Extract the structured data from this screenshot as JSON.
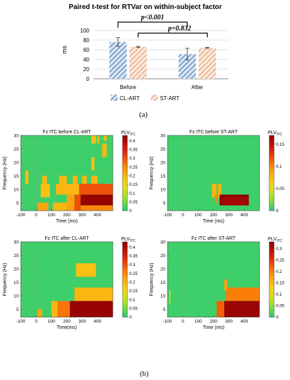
{
  "caption_a": "(a)",
  "caption_b": "(b)",
  "bar_chart": {
    "type": "bar",
    "title": "Paired t-test for RTVar on within-subject factor",
    "ylabel": "ms",
    "ylim": [
      0,
      100
    ],
    "yticks": [
      "0",
      "20",
      "40",
      "60",
      "80",
      "100"
    ],
    "categories": [
      "Before",
      "After"
    ],
    "series": [
      {
        "name": "CL-ART",
        "values": [
          76,
          51
        ],
        "errors": [
          9,
          12
        ],
        "color": "#4f81bd",
        "pattern": "hatch-blue"
      },
      {
        "name": "ST-ART",
        "values": [
          66,
          64
        ],
        "errors": [
          1,
          1
        ],
        "color": "#e6a57a",
        "pattern": "hatch-orange"
      }
    ],
    "annotations": [
      "p<0.001",
      "p=0.832"
    ]
  },
  "chart_data": [
    {
      "type": "heatmap",
      "title": "Fz ITC before CL-ART",
      "xlabel": "Time (ms)",
      "ylabel": "Frequency (Hz)",
      "xticks": [
        "-100",
        "0",
        "100",
        "200",
        "300",
        "400"
      ],
      "yticks": [
        "5",
        "10",
        "15",
        "20",
        "25",
        "30"
      ],
      "xlim": [
        -100,
        500
      ],
      "ylim": [
        2,
        30
      ],
      "colorbar_title": "PLV",
      "colorbar_sub": "ITC",
      "colorbar_ticks": [
        "0",
        "0.05",
        "0.1",
        "0.15",
        "0.2",
        "0.25",
        "0.3",
        "0.35",
        "0.4"
      ],
      "vmax": 0.43,
      "cells": [
        {
          "x0": -100,
          "x1": 10,
          "y0": 2,
          "y1": 30,
          "v": 0
        },
        {
          "x0": 10,
          "x1": 80,
          "y0": 2,
          "y1": 5,
          "v": 0.22
        },
        {
          "x0": 110,
          "x1": 200,
          "y0": 2,
          "y1": 5,
          "v": 0.2
        },
        {
          "x0": 250,
          "x1": 500,
          "y0": 2,
          "y1": 4,
          "v": 0.25
        },
        {
          "x0": 200,
          "x1": 250,
          "y0": 2,
          "y1": 8,
          "v": 0.22
        },
        {
          "x0": 250,
          "x1": 290,
          "y0": 2,
          "y1": 8,
          "v": 0.3
        },
        {
          "x0": 290,
          "x1": 500,
          "y0": 4,
          "y1": 8,
          "v": 0.42
        },
        {
          "x0": 280,
          "x1": 500,
          "y0": 8,
          "y1": 12,
          "v": 0.3
        },
        {
          "x0": 130,
          "x1": 280,
          "y0": 8,
          "y1": 12,
          "v": 0.2
        },
        {
          "x0": 30,
          "x1": 90,
          "y0": 7,
          "y1": 12,
          "v": 0.19
        },
        {
          "x0": 40,
          "x1": 70,
          "y0": 12,
          "y1": 15,
          "v": 0.2
        },
        {
          "x0": 150,
          "x1": 200,
          "y0": 12,
          "y1": 15,
          "v": 0.2
        },
        {
          "x0": 240,
          "x1": 270,
          "y0": 12,
          "y1": 15,
          "v": 0.2
        },
        {
          "x0": 300,
          "x1": 330,
          "y0": 12,
          "y1": 15,
          "v": 0.2
        },
        {
          "x0": 360,
          "x1": 400,
          "y0": 12,
          "y1": 15,
          "v": 0.2
        },
        {
          "x0": -70,
          "x1": -50,
          "y0": 12,
          "y1": 17,
          "v": 0.19
        },
        {
          "x0": 360,
          "x1": 380,
          "y0": 17,
          "y1": 22,
          "v": 0.19
        },
        {
          "x0": 430,
          "x1": 460,
          "y0": 22,
          "y1": 27,
          "v": 0.2
        },
        {
          "x0": 360,
          "x1": 390,
          "y0": 27,
          "y1": 30,
          "v": 0.19
        },
        {
          "x0": 400,
          "x1": 410,
          "y0": 27,
          "y1": 30,
          "v": 0.19
        },
        {
          "x0": 440,
          "x1": 460,
          "y0": 28,
          "y1": 30,
          "v": 0.2
        }
      ]
    },
    {
      "type": "heatmap",
      "title": "Fz ITC before ST-ART",
      "xlabel": "Time (ms)",
      "ylabel": "Frequency (Hz)",
      "xticks": [
        "-100",
        "0",
        "100",
        "200",
        "300",
        "400"
      ],
      "yticks": [
        "5",
        "10",
        "15",
        "20",
        "25",
        "30"
      ],
      "xlim": [
        -100,
        500
      ],
      "ylim": [
        2,
        30
      ],
      "colorbar_title": "PLV",
      "colorbar_sub": "ITC",
      "colorbar_ticks": [
        "0",
        "0.05",
        "0.1",
        "0.15"
      ],
      "vmax": 0.17,
      "cells": [
        {
          "x0": 190,
          "x1": 220,
          "y0": 7,
          "y1": 12,
          "v": 0.08
        },
        {
          "x0": 230,
          "x1": 250,
          "y0": 7,
          "y1": 12,
          "v": 0.08
        },
        {
          "x0": 210,
          "x1": 230,
          "y0": 5,
          "y1": 8,
          "v": 0.1
        },
        {
          "x0": 240,
          "x1": 430,
          "y0": 4,
          "y1": 8,
          "v": 0.17
        },
        {
          "x0": 260,
          "x1": 420,
          "y0": 4,
          "y1": 7,
          "v": 0.16
        }
      ]
    },
    {
      "type": "heatmap",
      "title": "Fz ITC after CL-ART",
      "xlabel": "Time(ms)",
      "ylabel": "Frequency (Hz)",
      "xticks": [
        "-100",
        "0",
        "100",
        "200",
        "300",
        "400"
      ],
      "yticks": [
        "5",
        "10",
        "15",
        "20",
        "25",
        "30"
      ],
      "xlim": [
        -100,
        500
      ],
      "ylim": [
        2,
        30
      ],
      "colorbar_title": "PLV",
      "colorbar_sub": "ITC",
      "colorbar_ticks": [
        "0",
        "0.05",
        "0.1",
        "0.15",
        "0.2",
        "0.25",
        "0.3",
        "0.35",
        "0.4"
      ],
      "vmax": 0.43,
      "cells": [
        {
          "x0": 260,
          "x1": 390,
          "y0": 17,
          "y1": 22,
          "v": 0.19
        },
        {
          "x0": 250,
          "x1": 500,
          "y0": 8,
          "y1": 13,
          "v": 0.2
        },
        {
          "x0": 100,
          "x1": 140,
          "y0": 2,
          "y1": 8,
          "v": 0.2
        },
        {
          "x0": 140,
          "x1": 220,
          "y0": 2,
          "y1": 8,
          "v": 0.27
        },
        {
          "x0": 220,
          "x1": 500,
          "y0": 2,
          "y1": 8,
          "v": 0.42
        },
        {
          "x0": 10,
          "x1": 40,
          "y0": 2,
          "y1": 5,
          "v": 0.22
        }
      ]
    },
    {
      "type": "heatmap",
      "title": "Fz ITC after ST-ART",
      "xlabel": "Time (ms)",
      "ylabel": "Frequency (Hz)",
      "xticks": [
        "-100",
        "0",
        "100",
        "200",
        "300",
        "400"
      ],
      "yticks": [
        "5",
        "10",
        "15",
        "20",
        "25",
        "30"
      ],
      "xlim": [
        -100,
        500
      ],
      "ylim": [
        2,
        30
      ],
      "colorbar_title": "PLV",
      "colorbar_sub": "ITC",
      "colorbar_ticks": [
        "0",
        "0.05",
        "0.1",
        "0.15",
        "0.2",
        "0.25",
        "0.3"
      ],
      "vmax": 0.33,
      "cells": [
        {
          "x0": -90,
          "x1": -80,
          "y0": 7,
          "y1": 12,
          "v": 0.06
        },
        {
          "x0": 280,
          "x1": 500,
          "y0": 8,
          "y1": 13,
          "v": 0.2
        },
        {
          "x0": 270,
          "x1": 290,
          "y0": 12,
          "y1": 16,
          "v": 0.17
        },
        {
          "x0": 220,
          "x1": 270,
          "y0": 2,
          "y1": 8,
          "v": 0.22
        },
        {
          "x0": 270,
          "x1": 500,
          "y0": 2,
          "y1": 8,
          "v": 0.32
        }
      ]
    }
  ]
}
